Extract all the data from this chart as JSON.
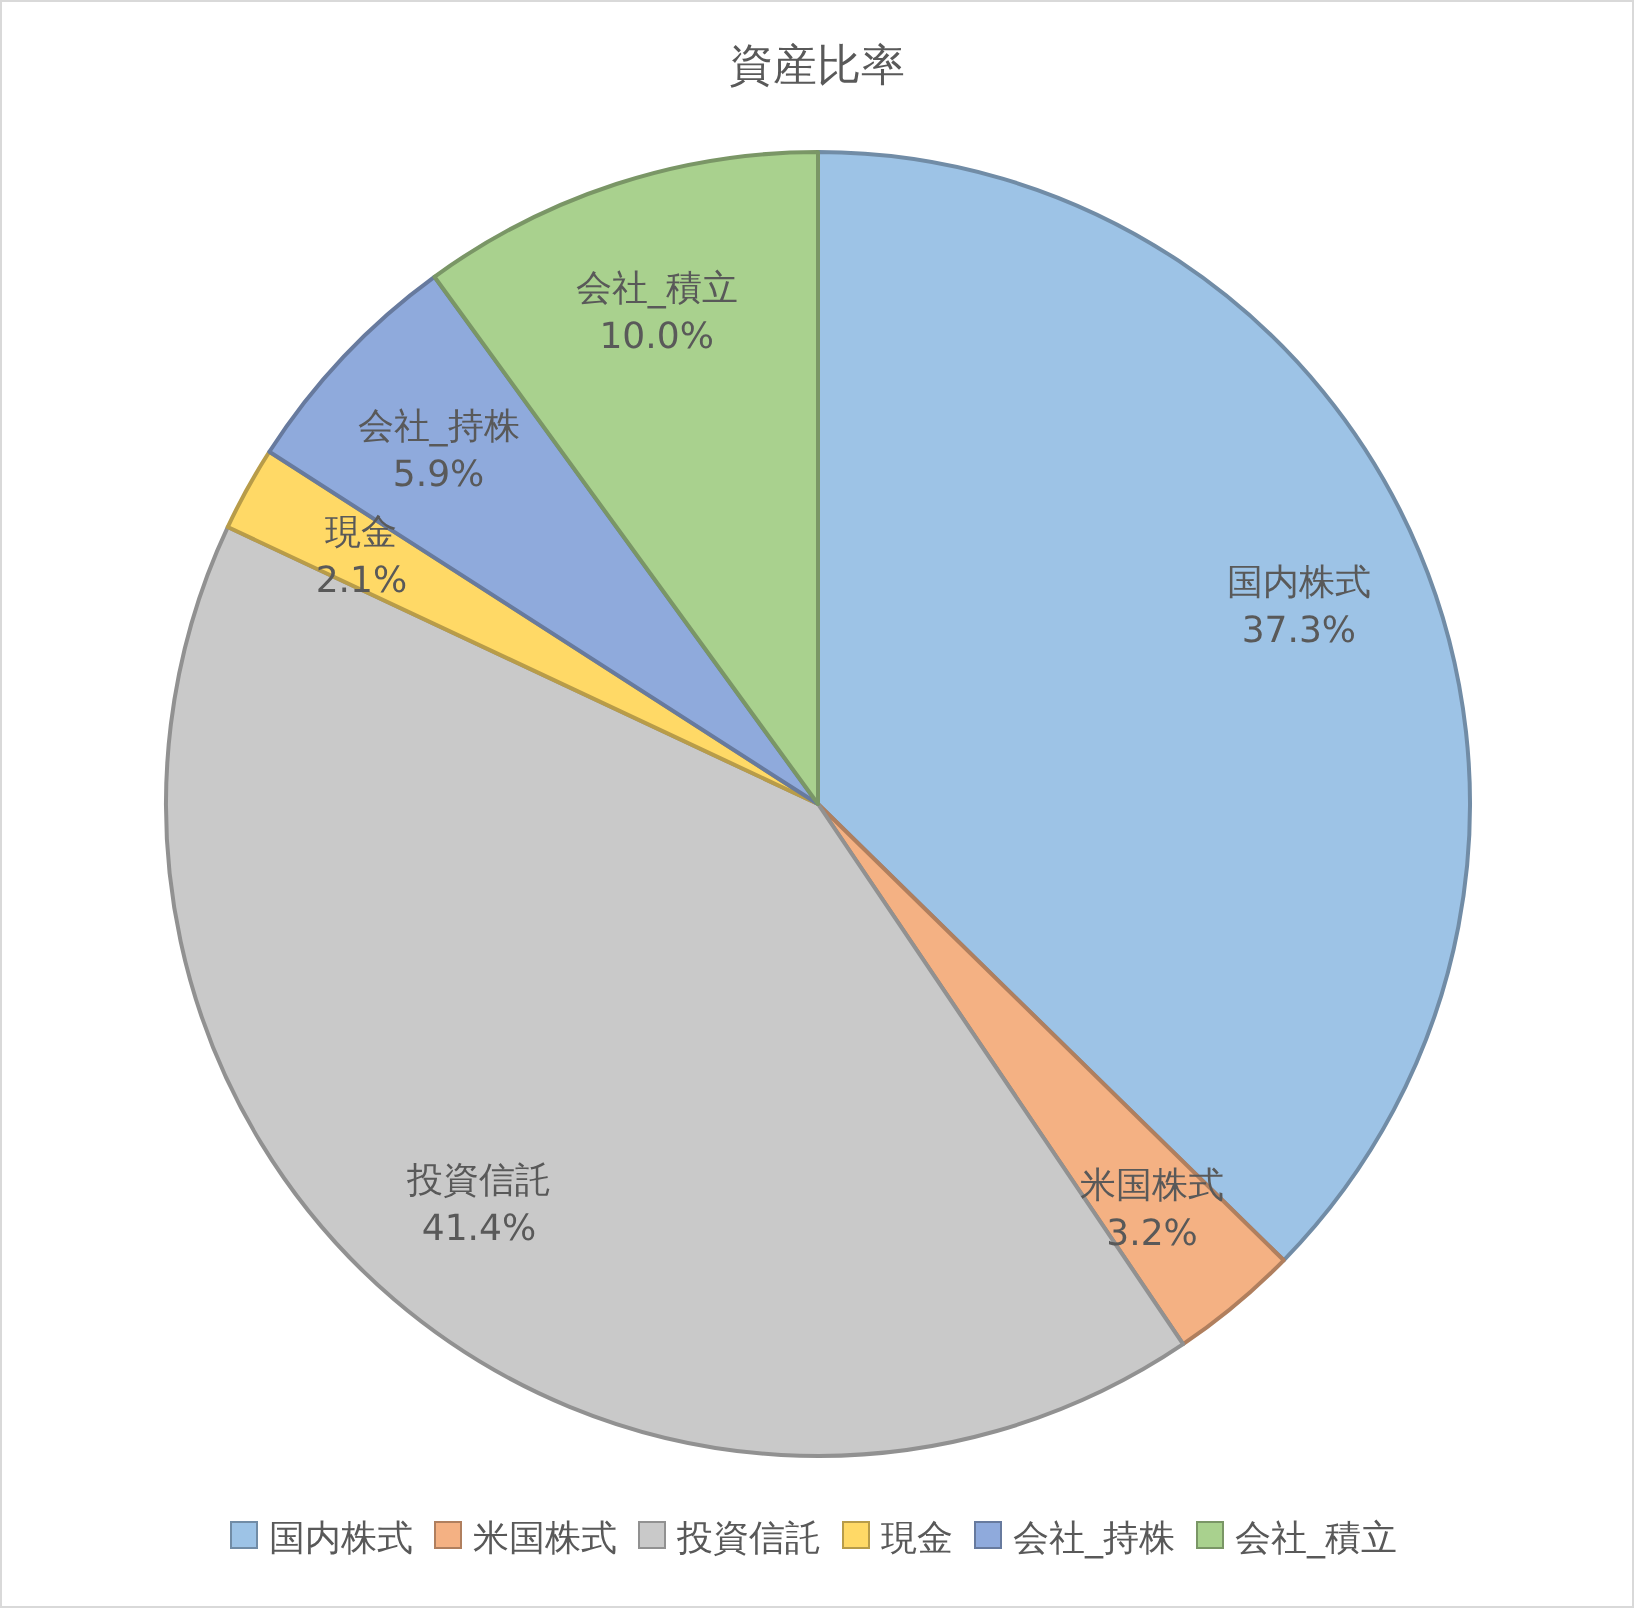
{
  "chart_data": {
    "type": "pie",
    "title": "資産比率",
    "categories": [
      "国内株式",
      "米国株式",
      "投資信託",
      "現金",
      "会社_持株",
      "会社_積立"
    ],
    "values": [
      37.3,
      3.2,
      41.4,
      2.1,
      5.9,
      10.0
    ],
    "value_labels": [
      "37.3%",
      "3.2%",
      "41.4%",
      "2.1%",
      "5.9%",
      "10.0%"
    ],
    "colors": [
      "#9dc3e6",
      "#f4b183",
      "#c9c9c9",
      "#ffd966",
      "#8faadc",
      "#a9d18e"
    ],
    "legend": "bottom"
  }
}
